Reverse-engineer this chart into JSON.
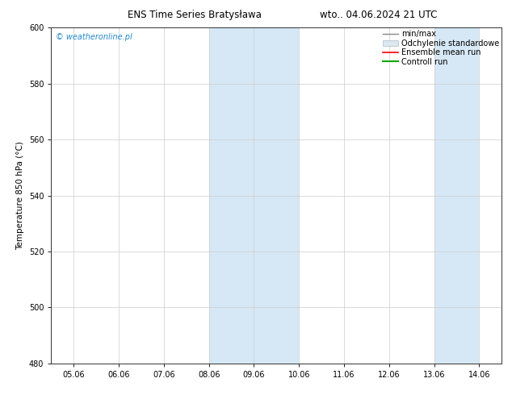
{
  "title_left": "ENS Time Series Bratysława",
  "title_right": "wto.. 04.06.2024 21 UTC",
  "ylabel": "Temperature 850 hPa (°C)",
  "watermark": "© weatheronline.pl",
  "ylim": [
    480,
    600
  ],
  "yticks": [
    480,
    500,
    520,
    540,
    560,
    580,
    600
  ],
  "xlim_dates": [
    "05.06",
    "06.06",
    "07.06",
    "08.06",
    "09.06",
    "10.06",
    "11.06",
    "12.06",
    "13.06",
    "14.06"
  ],
  "shaded_bands": [
    {
      "xmin": 3.0,
      "xmax": 5.0,
      "color": "#d6e8f5"
    },
    {
      "xmin": 8.0,
      "xmax": 9.0,
      "color": "#d6e8f5"
    }
  ],
  "legend_entries": [
    {
      "label": "min/max",
      "color": "#888888",
      "lw": 1.0
    },
    {
      "label": "Odchylenie standardowe",
      "color": "#c8d8e8",
      "lw": 5
    },
    {
      "label": "Ensemble mean run",
      "color": "#ff0000",
      "lw": 1.2
    },
    {
      "label": "Controll run",
      "color": "#00aa00",
      "lw": 1.5
    }
  ],
  "bg_color": "#ffffff",
  "plot_bg_color": "#ffffff",
  "title_fontsize": 8.5,
  "tick_fontsize": 7,
  "ylabel_fontsize": 7.5,
  "watermark_color": "#2288cc",
  "watermark_fontsize": 7,
  "legend_fontsize": 7
}
